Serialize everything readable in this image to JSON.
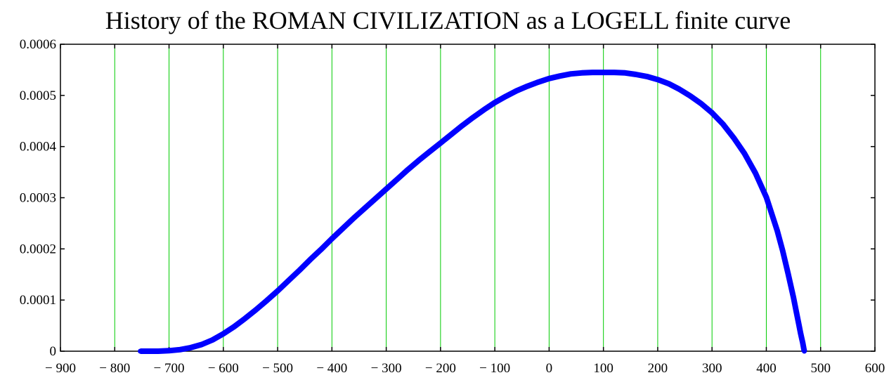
{
  "colors": {
    "series": "#0000ff",
    "grid": "#00cc00",
    "frame": "#000000"
  },
  "chart_data": {
    "type": "line",
    "title": "History of the ROMAN CIVILIZATION as a LOGELL finite curve",
    "xlabel": "",
    "ylabel": "",
    "xlim": [
      -900,
      600
    ],
    "ylim": [
      0,
      0.0006
    ],
    "grid": "vertical",
    "x_ticks": [
      -900,
      -800,
      -700,
      -600,
      -500,
      -400,
      -300,
      -200,
      -100,
      0,
      100,
      200,
      300,
      400,
      500,
      600
    ],
    "x_tick_labels": [
      "− 900",
      "− 800",
      "− 700",
      "− 600",
      "− 500",
      "− 400",
      "− 300",
      "− 200",
      "− 100",
      "0",
      "100",
      "200",
      "300",
      "400",
      "500",
      "600"
    ],
    "y_ticks": [
      0,
      0.0001,
      0.0002,
      0.0003,
      0.0004,
      0.0005,
      0.0006
    ],
    "y_tick_labels": [
      "0",
      "0.0001",
      "0.0002",
      "0.0003",
      "0.0004",
      "0.0005",
      "0.0006"
    ],
    "series": [
      {
        "x": [
          -753,
          -720,
          -700,
          -680,
          -660,
          -640,
          -620,
          -600,
          -580,
          -560,
          -540,
          -520,
          -500,
          -480,
          -460,
          -440,
          -420,
          -400,
          -380,
          -360,
          -340,
          -320,
          -300,
          -280,
          -260,
          -240,
          -220,
          -200,
          -180,
          -160,
          -140,
          -120,
          -100,
          -80,
          -60,
          -40,
          -20,
          0,
          20,
          40,
          60,
          80,
          100,
          120,
          140,
          160,
          180,
          200,
          220,
          240,
          260,
          280,
          300,
          320,
          340,
          360,
          380,
          400,
          420,
          430,
          440,
          450,
          455,
          460,
          463,
          465,
          467,
          468,
          469,
          470
        ],
        "y": [
          0,
          0,
          1e-06,
          3e-06,
          7e-06,
          1.3e-05,
          2.2e-05,
          3.4e-05,
          4.8e-05,
          6.4e-05,
          8.1e-05,
          9.9e-05,
          0.000118,
          0.000138,
          0.000158,
          0.000179,
          0.000199,
          0.00022,
          0.00024,
          0.00026,
          0.000279,
          0.000298,
          0.000317,
          0.000336,
          0.000355,
          0.000373,
          0.00039,
          0.000407,
          0.000424,
          0.000441,
          0.000457,
          0.000472,
          0.000486,
          0.000498,
          0.000509,
          0.000518,
          0.000526,
          0.000533,
          0.000538,
          0.000542,
          0.000544,
          0.000545,
          0.000545,
          0.000545,
          0.000544,
          0.000541,
          0.000537,
          0.000531,
          0.000523,
          0.000512,
          0.000499,
          0.000484,
          0.000466,
          0.000444,
          0.000417,
          0.000386,
          0.000348,
          0.000301,
          0.000236,
          0.000197,
          0.000152,
          0.000105,
          7.8e-05,
          5.2e-05,
          3.6e-05,
          2.6e-05,
          1.7e-05,
          1.1e-05,
          5e-06,
          0
        ]
      }
    ]
  }
}
